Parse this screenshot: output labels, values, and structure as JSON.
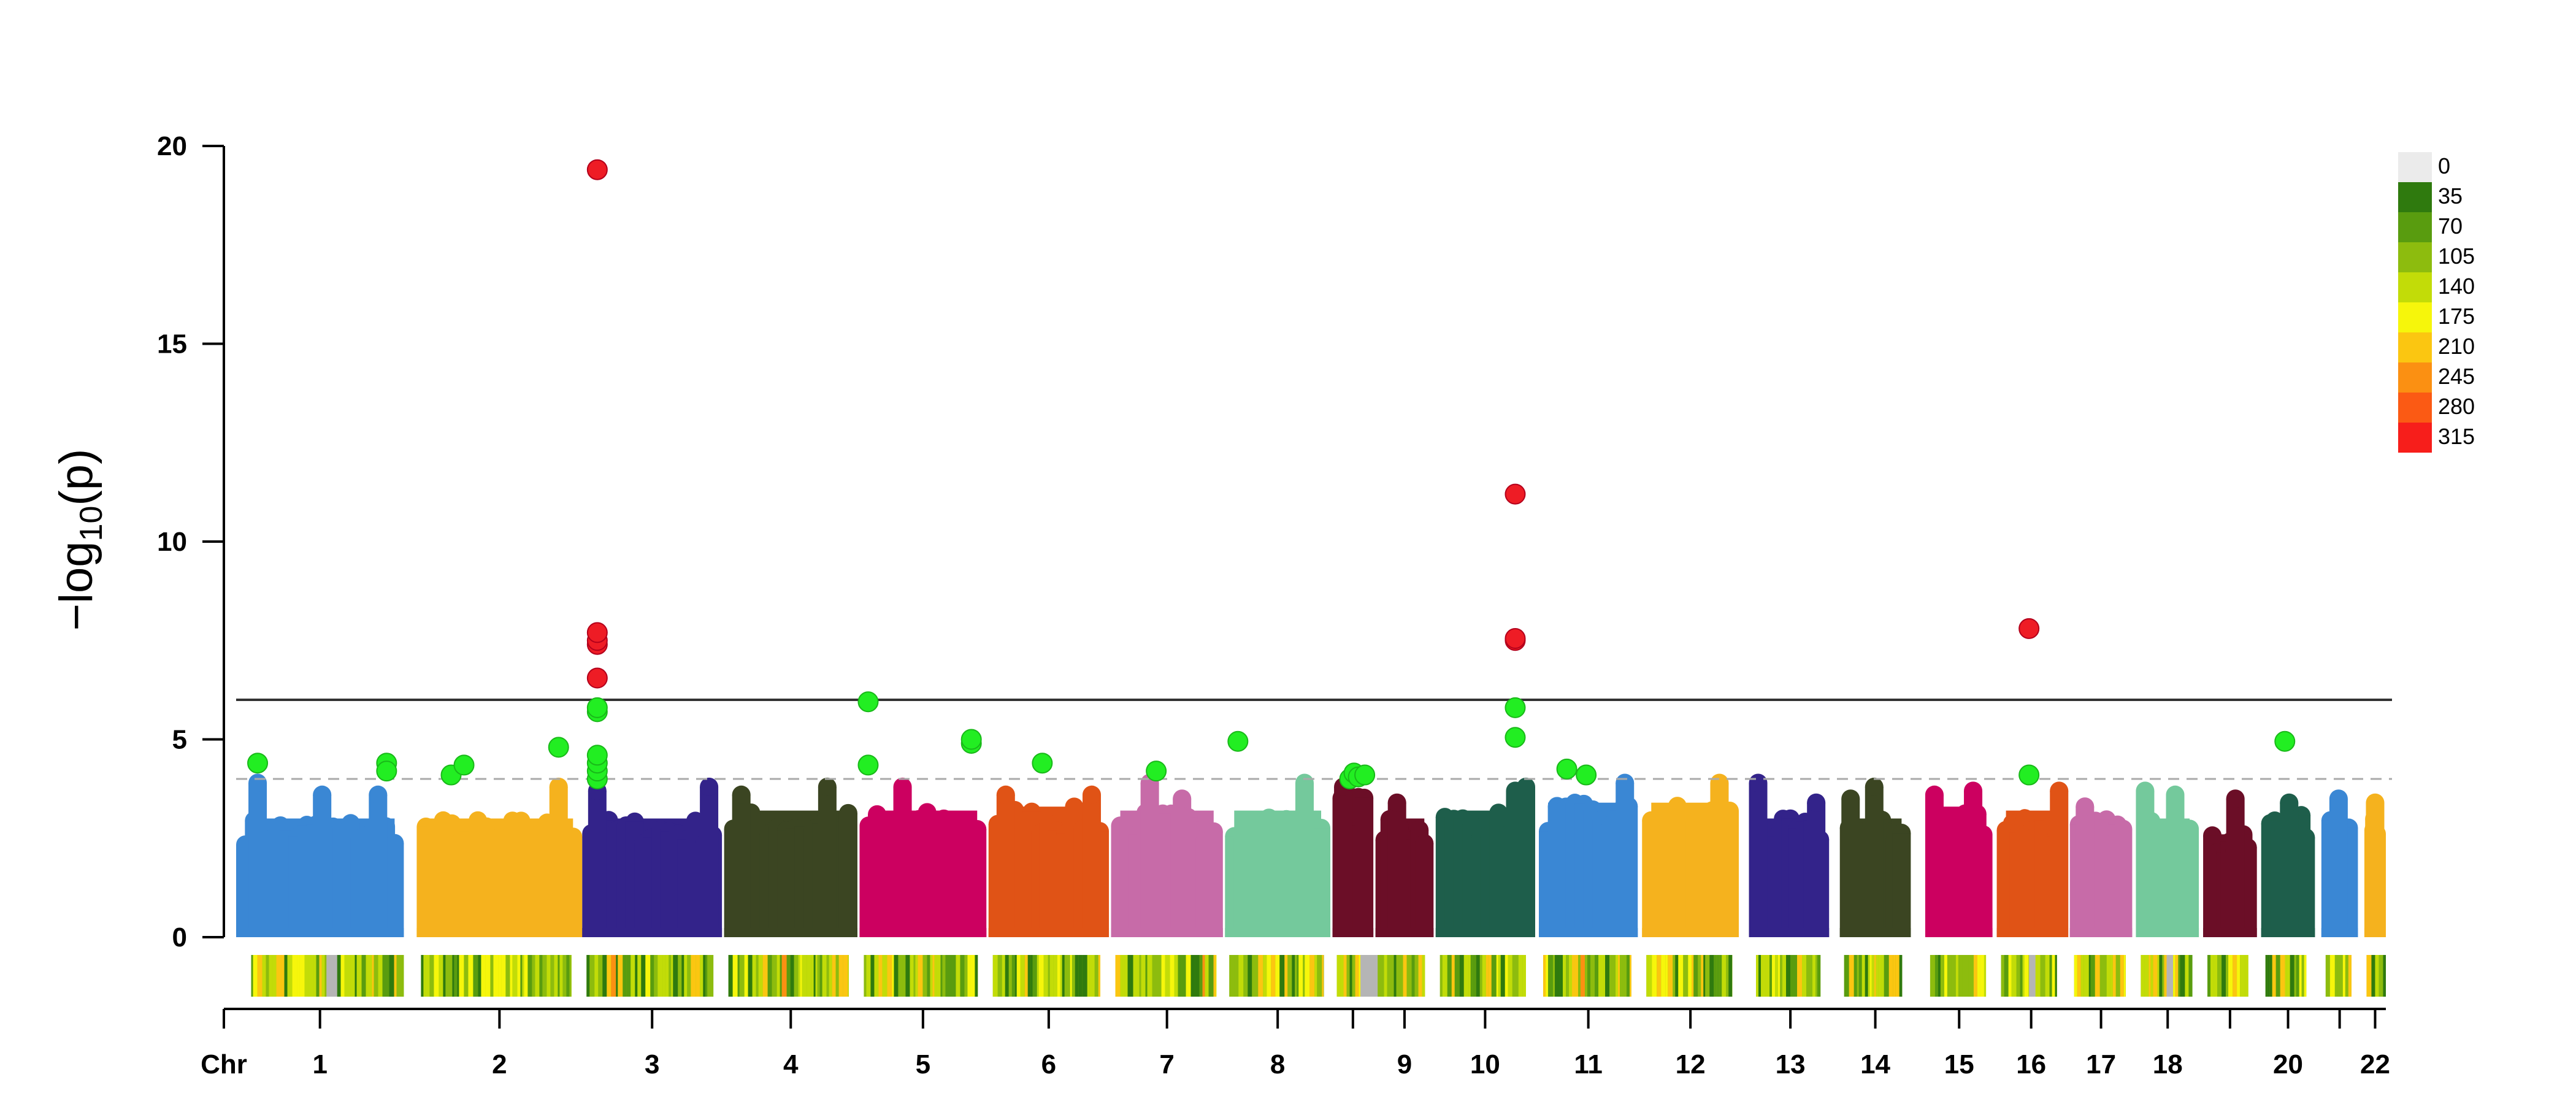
{
  "chart_data": {
    "type": "scatter",
    "subtype": "manhattan",
    "title": "",
    "xlabel": "",
    "ylabel_parts": {
      "prefix": "−log",
      "subscript": "10",
      "suffix": "(p)"
    },
    "ylim": [
      0,
      20
    ],
    "yticks": [
      "0",
      "5",
      "10",
      "15",
      "20"
    ],
    "x_axis_prefix": "Chr",
    "grid": false,
    "thresholds": [
      {
        "value": 6,
        "style": "solid",
        "color": "#333333"
      },
      {
        "value": 4,
        "style": "dashed",
        "color": "#aaaaaa"
      }
    ],
    "highlight_colors": {
      "suggestive": "#22ee22",
      "significant": "#ee1c25"
    },
    "chromosomes": [
      {
        "label": "1",
        "show_label": true,
        "color": "#3a87d4",
        "range": [
          0.0,
          0.078
        ],
        "base_top": 3.0,
        "peaks": [
          [
            0.01,
            3.9
          ],
          [
            0.04,
            3.6
          ],
          [
            0.066,
            3.6
          ]
        ]
      },
      {
        "label": "2",
        "show_label": true,
        "color": "#f5b21e",
        "range": [
          0.084,
          0.161
        ],
        "base_top": 3.0,
        "peaks": [
          [
            0.15,
            3.8
          ]
        ]
      },
      {
        "label": "3",
        "show_label": true,
        "color": "#33238a",
        "range": [
          0.161,
          0.226
        ],
        "base_top": 3.0,
        "peaks": [
          [
            0.168,
            3.7
          ],
          [
            0.22,
            3.8
          ]
        ]
      },
      {
        "label": "4",
        "show_label": true,
        "color": "#3b4522",
        "range": [
          0.227,
          0.289
        ],
        "base_top": 3.2,
        "peaks": [
          [
            0.235,
            3.6
          ],
          [
            0.275,
            3.8
          ]
        ]
      },
      {
        "label": "5",
        "show_label": true,
        "color": "#cc0060",
        "range": [
          0.29,
          0.349
        ],
        "base_top": 3.2,
        "peaks": [
          [
            0.31,
            3.8
          ]
        ]
      },
      {
        "label": "6",
        "show_label": true,
        "color": "#e05316",
        "range": [
          0.35,
          0.406
        ],
        "base_top": 3.3,
        "peaks": [
          [
            0.358,
            3.6
          ],
          [
            0.398,
            3.6
          ]
        ]
      },
      {
        "label": "7",
        "show_label": true,
        "color": "#c76ba8",
        "range": [
          0.407,
          0.459
        ],
        "base_top": 3.2,
        "peaks": [
          [
            0.425,
            3.9
          ],
          [
            0.44,
            3.5
          ]
        ]
      },
      {
        "label": "8",
        "show_label": true,
        "color": "#74c99c",
        "range": [
          0.46,
          0.509
        ],
        "base_top": 3.2,
        "peaks": [
          [
            0.497,
            3.9
          ]
        ]
      },
      {
        "label": "",
        "show_label": false,
        "color": "#6b0e27",
        "range": [
          0.51,
          0.529
        ],
        "base_top": 3.6,
        "peaks": [
          [
            0.515,
            3.8
          ]
        ]
      },
      {
        "label": "9",
        "show_label": true,
        "color": "#6b0e27",
        "range": [
          0.53,
          0.557
        ],
        "base_top": 3.0,
        "peaks": [
          [
            0.54,
            3.4
          ]
        ]
      },
      {
        "label": "10",
        "show_label": true,
        "color": "#1e5e4b",
        "range": [
          0.558,
          0.604
        ],
        "base_top": 3.2,
        "peaks": [
          [
            0.595,
            3.7
          ],
          [
            0.6,
            3.8
          ]
        ]
      },
      {
        "label": "11",
        "show_label": true,
        "color": "#3a87d4",
        "range": [
          0.606,
          0.652
        ],
        "base_top": 3.4,
        "peaks": [
          [
            0.646,
            3.9
          ]
        ]
      },
      {
        "label": "12",
        "show_label": true,
        "color": "#f5b21e",
        "range": [
          0.654,
          0.699
        ],
        "base_top": 3.4,
        "peaks": [
          [
            0.69,
            3.9
          ]
        ]
      },
      {
        "label": "13",
        "show_label": true,
        "color": "#33238a",
        "range": [
          0.705,
          0.741
        ],
        "base_top": 3.0,
        "peaks": [
          [
            0.708,
            3.9
          ],
          [
            0.735,
            3.4
          ]
        ]
      },
      {
        "label": "14",
        "show_label": true,
        "color": "#3b4522",
        "range": [
          0.746,
          0.779
        ],
        "base_top": 3.0,
        "peaks": [
          [
            0.751,
            3.5
          ],
          [
            0.762,
            3.8
          ]
        ]
      },
      {
        "label": "15",
        "show_label": true,
        "color": "#cc0060",
        "range": [
          0.786,
          0.817
        ],
        "base_top": 3.3,
        "peaks": [
          [
            0.79,
            3.6
          ],
          [
            0.808,
            3.7
          ]
        ]
      },
      {
        "label": "16",
        "show_label": true,
        "color": "#e05316",
        "range": [
          0.819,
          0.851
        ],
        "base_top": 3.2,
        "peaks": [
          [
            0.848,
            3.7
          ]
        ]
      },
      {
        "label": "17",
        "show_label": true,
        "color": "#c76ba8",
        "range": [
          0.853,
          0.882
        ],
        "base_top": 3.0,
        "peaks": [
          [
            0.86,
            3.3
          ]
        ]
      },
      {
        "label": "18",
        "show_label": true,
        "color": "#74c99c",
        "range": [
          0.884,
          0.913
        ],
        "base_top": 3.0,
        "peaks": [
          [
            0.888,
            3.7
          ],
          [
            0.902,
            3.6
          ]
        ]
      },
      {
        "label": "",
        "show_label": false,
        "color": "#6b0e27",
        "range": [
          0.915,
          0.94
        ],
        "base_top": 2.6,
        "peaks": [
          [
            0.93,
            3.5
          ]
        ]
      },
      {
        "label": "20",
        "show_label": true,
        "color": "#1e5e4b",
        "range": [
          0.942,
          0.967
        ],
        "base_top": 3.1,
        "peaks": [
          [
            0.955,
            3.4
          ]
        ]
      },
      {
        "label": "",
        "show_label": false,
        "color": "#3a87d4",
        "range": [
          0.97,
          0.987
        ],
        "base_top": 3.0,
        "peaks": [
          [
            0.978,
            3.5
          ]
        ]
      },
      {
        "label": "22",
        "show_label": true,
        "color": "#f5b21e",
        "range": [
          0.99,
          1.0
        ],
        "base_top": 3.0,
        "peaks": [
          [
            0.995,
            3.4
          ]
        ]
      }
    ],
    "highlight_points": [
      {
        "x": 0.01,
        "y": 4.4
      },
      {
        "x": 0.07,
        "y": 4.4
      },
      {
        "x": 0.07,
        "y": 4.2
      },
      {
        "x": 0.1,
        "y": 4.1
      },
      {
        "x": 0.106,
        "y": 4.35
      },
      {
        "x": 0.15,
        "y": 4.8
      },
      {
        "x": 0.168,
        "y": 4.0
      },
      {
        "x": 0.168,
        "y": 4.2
      },
      {
        "x": 0.168,
        "y": 4.4
      },
      {
        "x": 0.168,
        "y": 4.6
      },
      {
        "x": 0.168,
        "y": 5.7
      },
      {
        "x": 0.168,
        "y": 5.8
      },
      {
        "x": 0.168,
        "y": 6.55
      },
      {
        "x": 0.168,
        "y": 7.4
      },
      {
        "x": 0.168,
        "y": 7.5
      },
      {
        "x": 0.168,
        "y": 7.7
      },
      {
        "x": 0.168,
        "y": 19.4
      },
      {
        "x": 0.294,
        "y": 4.35
      },
      {
        "x": 0.294,
        "y": 5.95
      },
      {
        "x": 0.342,
        "y": 4.9
      },
      {
        "x": 0.342,
        "y": 5.0
      },
      {
        "x": 0.375,
        "y": 4.4
      },
      {
        "x": 0.428,
        "y": 4.2
      },
      {
        "x": 0.466,
        "y": 4.95
      },
      {
        "x": 0.518,
        "y": 4.0
      },
      {
        "x": 0.52,
        "y": 4.15
      },
      {
        "x": 0.522,
        "y": 4.05
      },
      {
        "x": 0.525,
        "y": 4.1
      },
      {
        "x": 0.595,
        "y": 5.05
      },
      {
        "x": 0.595,
        "y": 5.8
      },
      {
        "x": 0.595,
        "y": 7.5
      },
      {
        "x": 0.595,
        "y": 7.55
      },
      {
        "x": 0.595,
        "y": 11.2
      },
      {
        "x": 0.619,
        "y": 4.25
      },
      {
        "x": 0.628,
        "y": 4.1
      },
      {
        "x": 0.834,
        "y": 4.1
      },
      {
        "x": 0.834,
        "y": 7.8
      },
      {
        "x": 0.953,
        "y": 4.95
      }
    ],
    "density_strips": [
      {
        "range": [
          0.007,
          0.078
        ],
        "gaps": [
          [
            0.042,
            0.047
          ]
        ]
      },
      {
        "range": [
          0.086,
          0.156
        ],
        "gaps": []
      },
      {
        "range": [
          0.163,
          0.222
        ],
        "gaps": []
      },
      {
        "range": [
          0.229,
          0.285
        ],
        "gaps": []
      },
      {
        "range": [
          0.292,
          0.345
        ],
        "gaps": []
      },
      {
        "range": [
          0.352,
          0.402
        ],
        "gaps": []
      },
      {
        "range": [
          0.409,
          0.456
        ],
        "gaps": []
      },
      {
        "range": [
          0.462,
          0.506
        ],
        "gaps": []
      },
      {
        "range": [
          0.512,
          0.553
        ],
        "gaps": [
          [
            0.523,
            0.531
          ]
        ]
      },
      {
        "range": [
          0.56,
          0.6
        ],
        "gaps": []
      },
      {
        "range": [
          0.608,
          0.649
        ],
        "gaps": []
      },
      {
        "range": [
          0.656,
          0.696
        ],
        "gaps": []
      },
      {
        "range": [
          0.707,
          0.737
        ],
        "gaps": []
      },
      {
        "range": [
          0.748,
          0.775
        ],
        "gaps": []
      },
      {
        "range": [
          0.788,
          0.814
        ],
        "gaps": []
      },
      {
        "range": [
          0.821,
          0.847
        ],
        "gaps": [
          [
            0.834,
            0.837
          ]
        ]
      },
      {
        "range": [
          0.855,
          0.879
        ],
        "gaps": []
      },
      {
        "range": [
          0.886,
          0.91
        ],
        "gaps": [
          [
            0.898,
            0.901
          ]
        ]
      },
      {
        "range": [
          0.917,
          0.936
        ],
        "gaps": []
      },
      {
        "range": [
          0.944,
          0.963
        ],
        "gaps": []
      },
      {
        "range": [
          0.972,
          0.984
        ],
        "gaps": []
      },
      {
        "range": [
          0.991,
          1.0
        ],
        "gaps": []
      }
    ],
    "density_legend": [
      {
        "label": "0",
        "color": "#ebebeb"
      },
      {
        "label": "35",
        "color": "#2f7a0e"
      },
      {
        "label": "70",
        "color": "#599c0f"
      },
      {
        "label": "105",
        "color": "#8dbc0e"
      },
      {
        "label": "140",
        "color": "#c2dc08"
      },
      {
        "label": "175",
        "color": "#f6f60b"
      },
      {
        "label": "210",
        "color": "#fbc611"
      },
      {
        "label": "245",
        "color": "#fb9012"
      },
      {
        "label": "280",
        "color": "#fb5a14"
      },
      {
        "label": "315",
        "color": "#f71e1b"
      }
    ],
    "legend_position": "top-right"
  }
}
